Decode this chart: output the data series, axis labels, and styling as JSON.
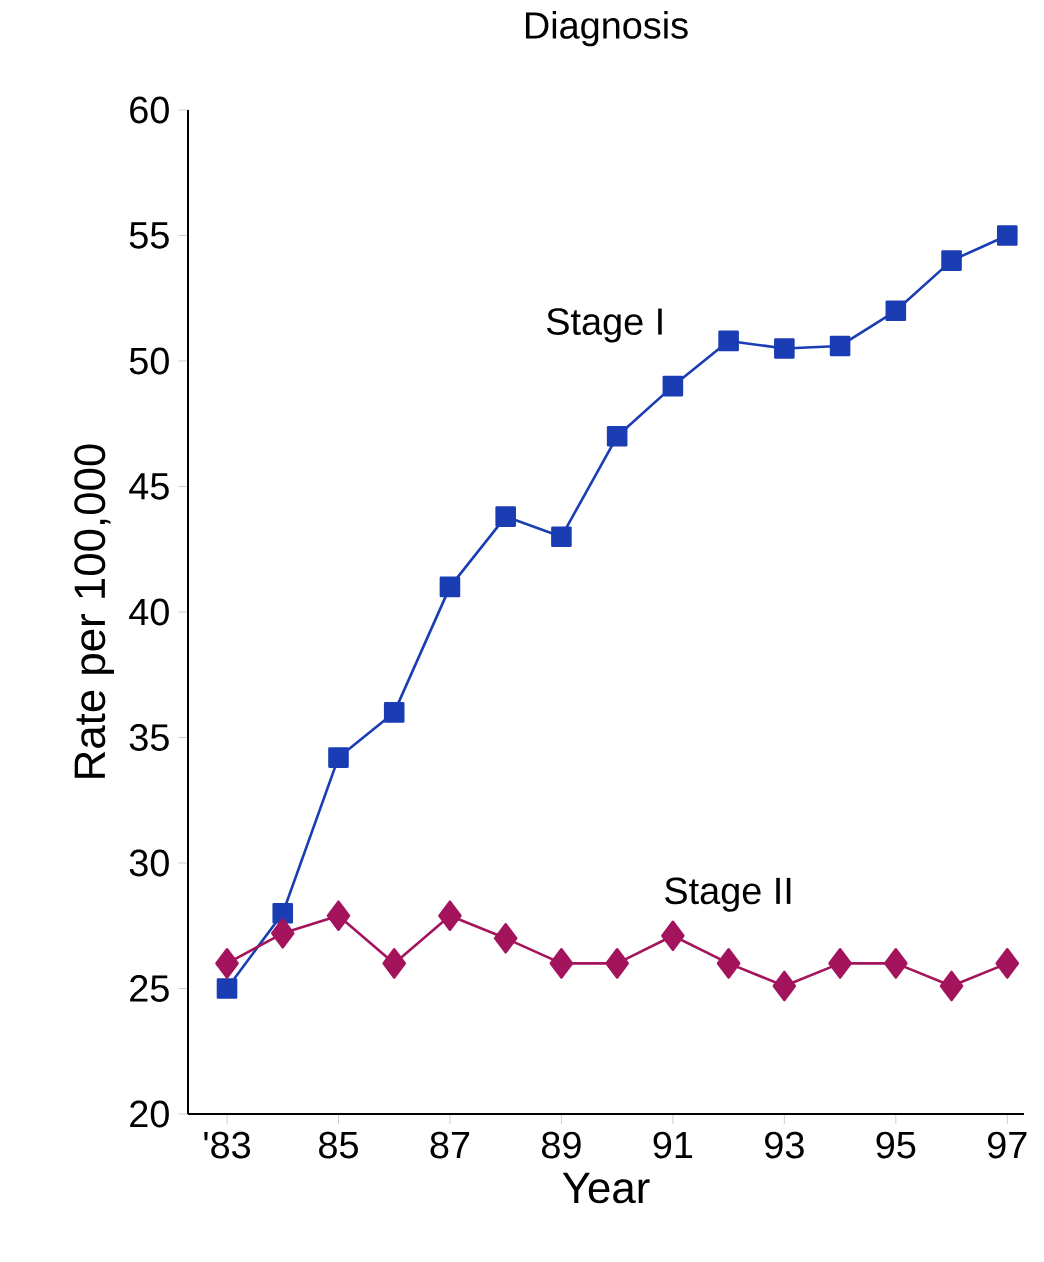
{
  "chart_data": {
    "type": "line",
    "title": "Diagnosis",
    "xlabel": "Year",
    "ylabel": "Rate per 100,000",
    "x": [
      1983,
      1984,
      1985,
      1986,
      1987,
      1988,
      1989,
      1990,
      1991,
      1992,
      1993,
      1994,
      1995,
      1996,
      1997
    ],
    "series": [
      {
        "name": "Stage I",
        "color": "#1a3db4",
        "marker": "square",
        "values": [
          25,
          28,
          34.2,
          36,
          41,
          43.8,
          43,
          47,
          49,
          50.8,
          50.5,
          50.6,
          52,
          54,
          55
        ]
      },
      {
        "name": "Stage II",
        "color": "#a3145c",
        "marker": "diamond",
        "values": [
          26,
          27.2,
          27.9,
          26,
          27.9,
          27,
          26,
          26,
          27.1,
          26,
          25.1,
          26,
          26,
          25.1,
          26
        ]
      }
    ],
    "xlim": [
      1982.3,
      1997.3
    ],
    "ylim": [
      20,
      60
    ],
    "xticks": [
      {
        "value": 1983,
        "label": "'83"
      },
      {
        "value": 1985,
        "label": "85"
      },
      {
        "value": 1987,
        "label": "87"
      },
      {
        "value": 1989,
        "label": "89"
      },
      {
        "value": 1991,
        "label": "91"
      },
      {
        "value": 1993,
        "label": "93"
      },
      {
        "value": 1995,
        "label": "95"
      },
      {
        "value": 1997,
        "label": "97"
      }
    ],
    "yticks": [
      20,
      25,
      30,
      35,
      40,
      45,
      50,
      55,
      60
    ],
    "grid": false,
    "legend": false,
    "line_style": "solid"
  }
}
